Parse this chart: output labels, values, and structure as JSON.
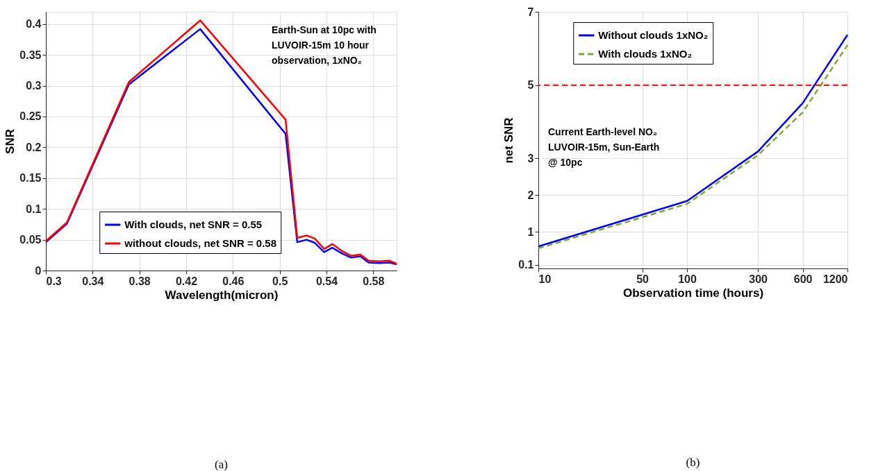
{
  "chart_data": [
    {
      "type": "line",
      "xlabel": "Wavelength(micron)",
      "ylabel": "SNR",
      "x": [
        0.3,
        0.318,
        0.371,
        0.432,
        0.505,
        0.515,
        0.523,
        0.53,
        0.538,
        0.545,
        0.553,
        0.561,
        0.569,
        0.576,
        0.585,
        0.594,
        0.6
      ],
      "series": [
        {
          "name": "With clouds, net SNR = 0.55",
          "color": "#0000ff",
          "line_style": "solid",
          "values": [
            0.046,
            0.076,
            0.302,
            0.392,
            0.222,
            0.046,
            0.05,
            0.045,
            0.03,
            0.037,
            0.028,
            0.021,
            0.023,
            0.013,
            0.012,
            0.013,
            0.01
          ]
        },
        {
          "name": "without clouds, net SNR = 0.58",
          "color": "#ff0000",
          "line_style": "solid",
          "values": [
            0.048,
            0.078,
            0.306,
            0.406,
            0.245,
            0.053,
            0.057,
            0.052,
            0.035,
            0.043,
            0.032,
            0.024,
            0.026,
            0.016,
            0.015,
            0.016,
            0.011
          ]
        }
      ],
      "xlim": [
        0.3,
        0.6
      ],
      "xticks": [
        0.3,
        0.34,
        0.38,
        0.42,
        0.46,
        0.5,
        0.54,
        0.58
      ],
      "ylim": [
        0,
        0.42
      ],
      "yticks": [
        0,
        0.05,
        0.1,
        0.15,
        0.2,
        0.25,
        0.3,
        0.35,
        0.4
      ],
      "grid": true,
      "legend": "bottom",
      "annotations": [
        "Earth-Sun at 10pc with\nLUVOIR-15m 10 hour\nobservation, 1xNO₂",
        "(a)"
      ]
    },
    {
      "type": "line",
      "xlabel": "Observation time (hours)",
      "ylabel": "net SNR",
      "x": [
        10,
        100,
        300,
        600,
        1200
      ],
      "series": [
        {
          "name": "Without clouds 1xNO₂",
          "color": "#0000ff",
          "line_style": "solid",
          "values": [
            0.6,
            1.84,
            3.19,
            4.51,
            6.37
          ]
        },
        {
          "name": "With clouds 1xNO₂",
          "color": "#77ac30",
          "line_style": "dashed",
          "values": [
            0.55,
            1.76,
            3.09,
            4.26,
            6.09
          ]
        }
      ],
      "log": "x",
      "xlim": [
        10,
        1200
      ],
      "xticks": [
        10,
        50,
        100,
        300,
        600,
        1200
      ],
      "ylim": [
        0,
        7
      ],
      "yticks": [
        0.1,
        1,
        2,
        3,
        5,
        7
      ],
      "ref_lines": [
        {
          "axis": "y",
          "value": 5,
          "color": "#ff0000",
          "line_style": "dashed"
        }
      ],
      "grid": true,
      "legend": "top",
      "annotations": [
        "Current Earth-level NO₂\nLUVOIR-15m, Sun-Earth\n@ 10pc",
        "(b)"
      ]
    }
  ]
}
